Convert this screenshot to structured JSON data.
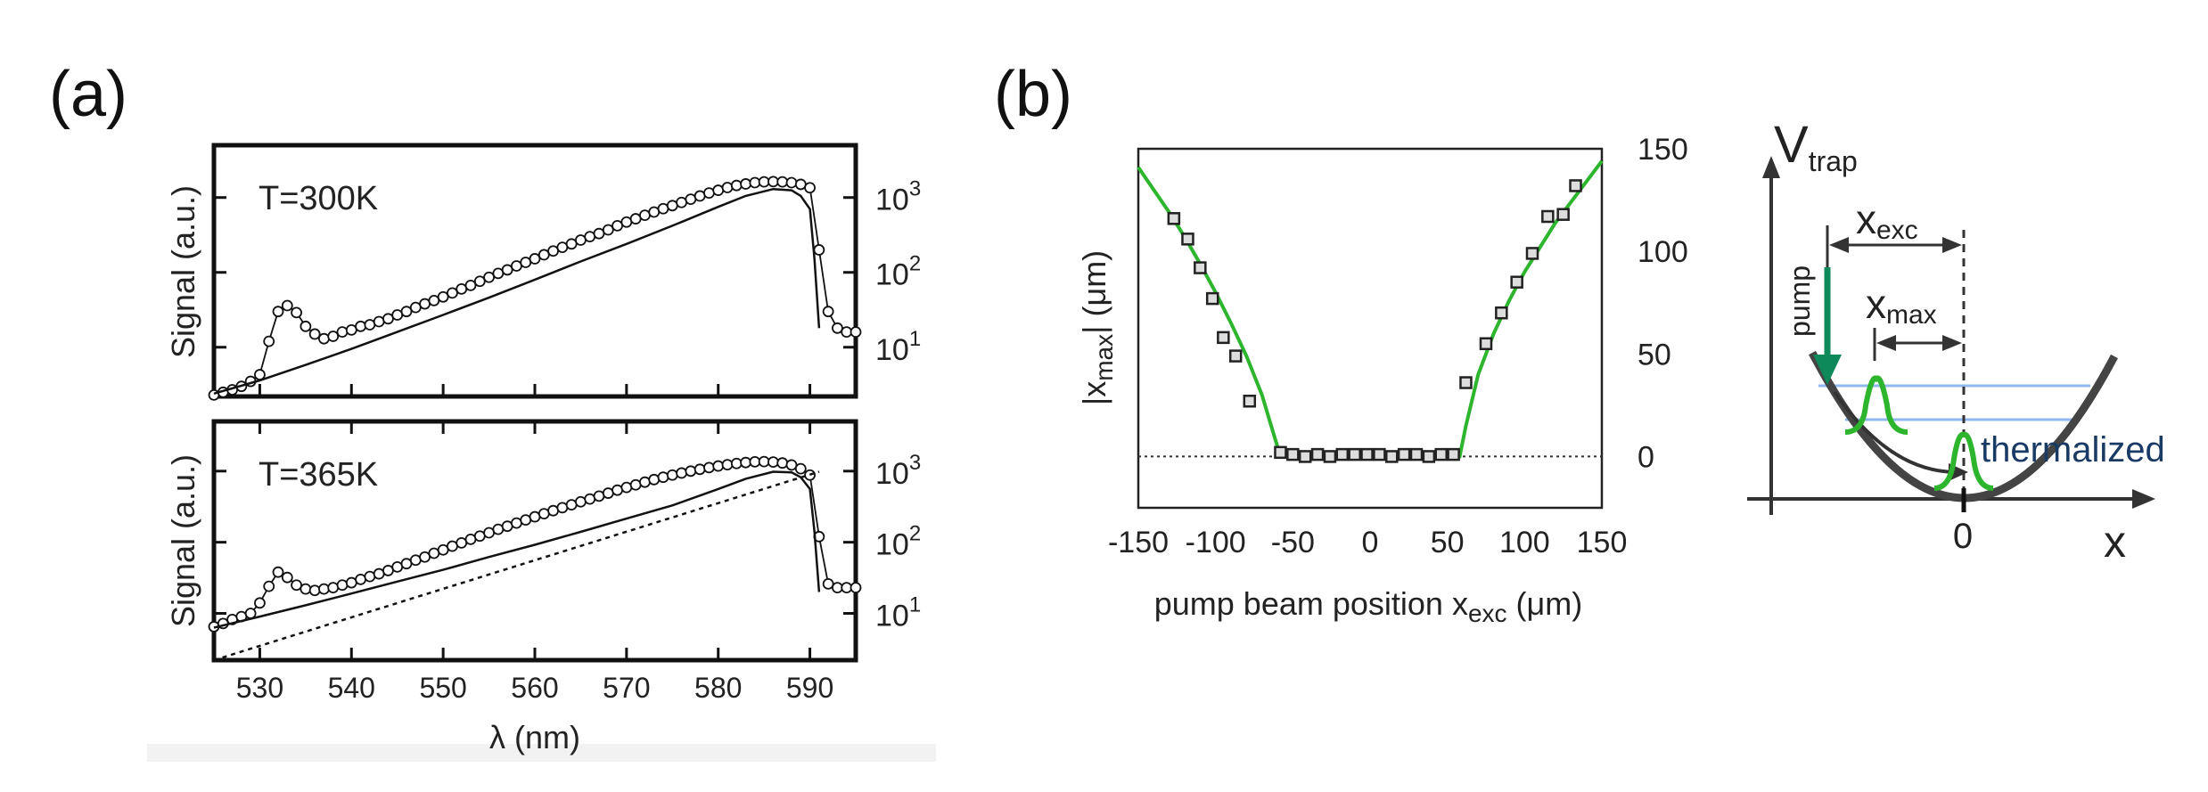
{
  "figure": {
    "panel_a_label": "(a)",
    "panel_b_label": "(b)"
  },
  "colors": {
    "fit_green": "#2db52d",
    "arrow_green": "#0e8a5a",
    "level_blue": "#8fb8ef",
    "axis": "#111111",
    "grey_background": "#f2f2f2"
  },
  "chart_data": [
    {
      "id": "a-top",
      "type": "line",
      "temperature_label": "T=300K",
      "ylabel": "Signal (a.u.)",
      "xlim": [
        525,
        595
      ],
      "ylog": true,
      "ylim": [
        2.2,
        5000
      ],
      "y_ticks_right": [
        {
          "base": "10",
          "exp": "1",
          "value": 10
        },
        {
          "base": "10",
          "exp": "2",
          "value": 100
        },
        {
          "base": "10",
          "exp": "3",
          "value": 1000
        }
      ],
      "series": [
        {
          "name": "data",
          "marker": "circle",
          "x": [
            525,
            526,
            527,
            528,
            529,
            530,
            531,
            532,
            533,
            534,
            535,
            536,
            537,
            538,
            539,
            540,
            541,
            542,
            543,
            544,
            545,
            546,
            547,
            548,
            549,
            550,
            551,
            552,
            553,
            554,
            555,
            556,
            557,
            558,
            559,
            560,
            561,
            562,
            563,
            564,
            565,
            566,
            567,
            568,
            569,
            570,
            571,
            572,
            573,
            574,
            575,
            576,
            577,
            578,
            579,
            580,
            581,
            582,
            583,
            584,
            585,
            586,
            587,
            588,
            589,
            590,
            591,
            592,
            593,
            594,
            595
          ],
          "y": [
            2.3,
            2.5,
            2.7,
            3.0,
            3.5,
            4.3,
            12,
            30,
            36,
            29,
            19,
            15,
            13,
            14,
            16,
            17,
            19,
            20,
            22,
            24,
            27,
            30,
            34,
            38,
            42,
            47,
            53,
            60,
            67,
            76,
            86,
            97,
            108,
            122,
            136,
            152,
            172,
            193,
            216,
            240,
            270,
            300,
            330,
            370,
            420,
            470,
            520,
            580,
            640,
            710,
            780,
            860,
            950,
            1050,
            1150,
            1250,
            1360,
            1450,
            1520,
            1580,
            1620,
            1630,
            1620,
            1580,
            1500,
            1350,
            200,
            30,
            18,
            16,
            16
          ]
        },
        {
          "name": "fit",
          "x": [
            525,
            530,
            535,
            540,
            545,
            550,
            555,
            560,
            565,
            570,
            575,
            580,
            583,
            586,
            588,
            589,
            590,
            590.5,
            591
          ],
          "y": [
            2.4,
            3.6,
            5.8,
            9.5,
            16,
            27,
            46,
            80,
            140,
            240,
            420,
            750,
            1050,
            1300,
            1250,
            1050,
            700,
            150,
            18
          ]
        }
      ]
    },
    {
      "id": "a-bottom",
      "type": "line",
      "temperature_label": "T=365K",
      "ylabel": "Signal (a.u.)",
      "xlabel": "λ (nm)",
      "xlim": [
        525,
        595
      ],
      "x_ticks": [
        530,
        540,
        550,
        560,
        570,
        580,
        590
      ],
      "ylog": true,
      "ylim": [
        2.2,
        5000
      ],
      "y_ticks_right": [
        {
          "base": "10",
          "exp": "1",
          "value": 10
        },
        {
          "base": "10",
          "exp": "2",
          "value": 100
        },
        {
          "base": "10",
          "exp": "3",
          "value": 1000
        }
      ],
      "series": [
        {
          "name": "data",
          "marker": "circle",
          "x": [
            525,
            526,
            527,
            528,
            529,
            530,
            531,
            532,
            533,
            534,
            535,
            536,
            537,
            538,
            539,
            540,
            541,
            542,
            543,
            544,
            545,
            546,
            547,
            548,
            549,
            550,
            551,
            552,
            553,
            554,
            555,
            556,
            557,
            558,
            559,
            560,
            561,
            562,
            563,
            564,
            565,
            566,
            567,
            568,
            569,
            570,
            571,
            572,
            573,
            574,
            575,
            576,
            577,
            578,
            579,
            580,
            581,
            582,
            583,
            584,
            585,
            586,
            587,
            588,
            589,
            590,
            591,
            592,
            593,
            594,
            595
          ],
          "y": [
            6.5,
            7.2,
            8.2,
            9.0,
            10,
            14,
            24,
            38,
            32,
            25,
            22,
            21,
            22,
            23,
            25,
            27,
            30,
            33,
            36,
            40,
            45,
            50,
            56,
            62,
            70,
            78,
            88,
            98,
            110,
            122,
            136,
            152,
            168,
            186,
            206,
            228,
            252,
            278,
            306,
            336,
            370,
            405,
            445,
            490,
            540,
            590,
            640,
            700,
            760,
            820,
            880,
            940,
            1000,
            1060,
            1120,
            1180,
            1230,
            1280,
            1320,
            1350,
            1360,
            1340,
            1300,
            1220,
            1080,
            880,
            120,
            26,
            23,
            23,
            23
          ]
        },
        {
          "name": "fit",
          "x": [
            525,
            530,
            535,
            540,
            545,
            550,
            555,
            560,
            565,
            570,
            575,
            580,
            583,
            586,
            588,
            589,
            590,
            590.5,
            591
          ],
          "y": [
            6.3,
            9,
            13,
            19,
            28,
            41,
            62,
            92,
            140,
            215,
            330,
            560,
            780,
            980,
            960,
            820,
            560,
            140,
            20
          ]
        },
        {
          "name": "baseline",
          "dash": "dotted",
          "x": [
            525,
            591
          ],
          "y": [
            2.2,
            980
          ]
        }
      ]
    },
    {
      "id": "b",
      "type": "scatter",
      "xlabel_main": "pump beam position x",
      "xlabel_sub": "exc",
      "xlabel_unit": "(μm)",
      "ylabel_main": "|x",
      "ylabel_sub": "max",
      "ylabel_unit": "| (μm)",
      "xlim": [
        -150,
        150
      ],
      "ylim": [
        -25,
        150
      ],
      "x_ticks": [
        -150,
        -100,
        -50,
        0,
        50,
        100,
        150
      ],
      "y_ticks_right": [
        0,
        50,
        100,
        150
      ],
      "series": [
        {
          "name": "data",
          "marker": "square",
          "x": [
            -127,
            -118,
            -110,
            -102,
            -95,
            -87,
            -78,
            -58,
            -50,
            -42,
            -34,
            -26,
            -18,
            -10,
            -2,
            6,
            14,
            22,
            30,
            38,
            46,
            54,
            62,
            75,
            85,
            95,
            105,
            115,
            125,
            133
          ],
          "y": [
            116,
            106,
            92,
            77,
            58,
            49,
            27,
            2,
            1,
            0,
            1,
            0,
            1,
            1,
            1,
            1,
            0,
            1,
            1,
            0,
            1,
            1,
            36,
            55,
            70,
            85,
            99,
            117,
            118,
            132
          ]
        },
        {
          "name": "fit",
          "color": "#2db52d",
          "x": [
            -150,
            -140,
            -130,
            -120,
            -110,
            -100,
            -90,
            -80,
            -70,
            -62,
            -58,
            -50,
            0,
            50,
            58,
            62,
            70,
            80,
            90,
            100,
            110,
            120,
            130,
            140,
            150
          ],
          "y": [
            141,
            130,
            119,
            107,
            94,
            80,
            65,
            49,
            30,
            10,
            0,
            0,
            0,
            0,
            0,
            15,
            40,
            60,
            76,
            90,
            102,
            114,
            124,
            134,
            144
          ]
        },
        {
          "name": "zero-line",
          "dash": "dotted",
          "x": [
            -150,
            150
          ],
          "y": [
            0,
            0
          ]
        }
      ]
    }
  ],
  "schematic": {
    "v_label": "V",
    "v_sub": "trap",
    "x_axis_label": "x",
    "zero_label": "0",
    "x_exc_main": "x",
    "x_exc_sub": "exc",
    "x_max_main": "x",
    "x_max_sub": "max",
    "pump_label": "pump",
    "thermalized_label": "thermalized"
  }
}
